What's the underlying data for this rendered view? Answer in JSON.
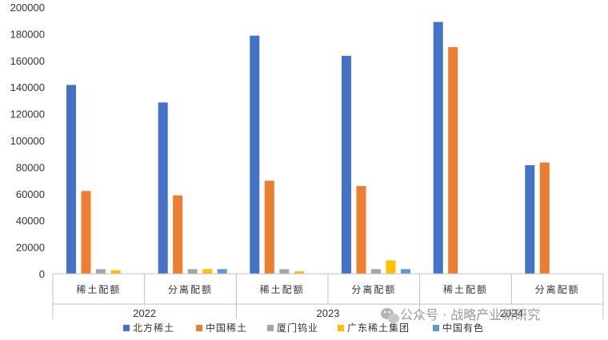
{
  "chart_data": {
    "type": "bar",
    "groups": [
      {
        "label": "2022",
        "categories": [
          "稀土配额",
          "分离配额"
        ]
      },
      {
        "label": "2023",
        "categories": [
          "稀土配额",
          "分离配额"
        ]
      },
      {
        "label": "2024",
        "categories": [
          "稀土配额",
          "分离配额"
        ]
      }
    ],
    "series": [
      {
        "name": "北方稀土",
        "color": "#4472C4",
        "values": [
          141650,
          128500,
          178650,
          163500,
          188900,
          81500
        ]
      },
      {
        "name": "中国稀土",
        "color": "#ED7D31",
        "values": [
          62100,
          58800,
          69800,
          65800,
          170000,
          83500
        ]
      },
      {
        "name": "厦门钨业",
        "color": "#A5A5A5",
        "values": [
          3440,
          3500,
          3440,
          3500,
          0,
          0
        ]
      },
      {
        "name": "广东稀土集团",
        "color": "#FFC000",
        "values": [
          2700,
          3500,
          1800,
          10000,
          0,
          0
        ]
      },
      {
        "name": "中国有色",
        "color": "#5B9BD5",
        "values": [
          0,
          3500,
          0,
          3500,
          0,
          0
        ]
      }
    ],
    "ylim": [
      0,
      200000
    ],
    "yticks": [
      0,
      20000,
      40000,
      60000,
      80000,
      100000,
      120000,
      140000,
      160000,
      180000,
      200000
    ],
    "grid": false,
    "legend_position": "bottom"
  },
  "watermark": {
    "text": "公众号 · 战略产业新研究"
  }
}
